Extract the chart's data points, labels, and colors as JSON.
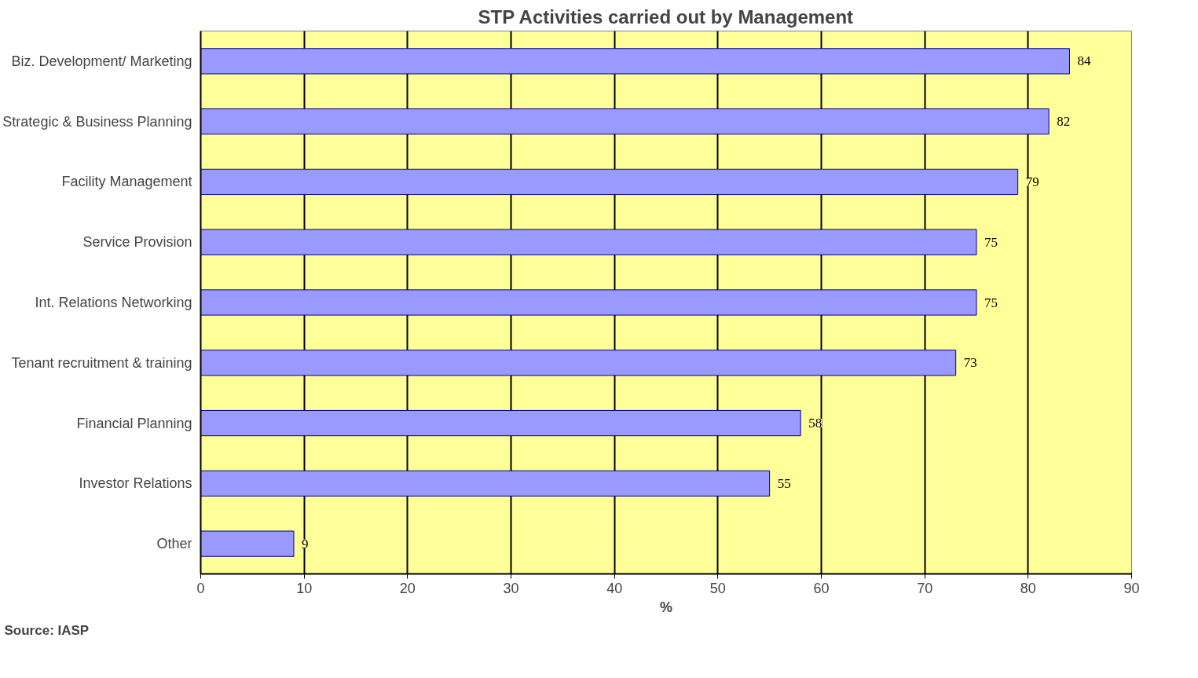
{
  "chart_data": {
    "type": "bar",
    "orientation": "horizontal",
    "title": "STP Activities carried out by Management",
    "xlabel": "%",
    "categories": [
      "Biz. Development/ Marketing",
      "Strategic & Business Planning",
      "Facility Management",
      "Service Provision",
      "Int. Relations Networking",
      "Tenant recruitment & training",
      "Financial Planning",
      "Investor Relations",
      "Other"
    ],
    "values": [
      84,
      82,
      79,
      75,
      75,
      73,
      58,
      55,
      9
    ],
    "color": "#9999ff",
    "xlim": [
      0,
      90
    ],
    "xticks": [
      0,
      10,
      20,
      30,
      40,
      50,
      60,
      70,
      80,
      90
    ],
    "grid": "x",
    "data_labels": true,
    "annotations": [
      "Source: IASP"
    ]
  }
}
